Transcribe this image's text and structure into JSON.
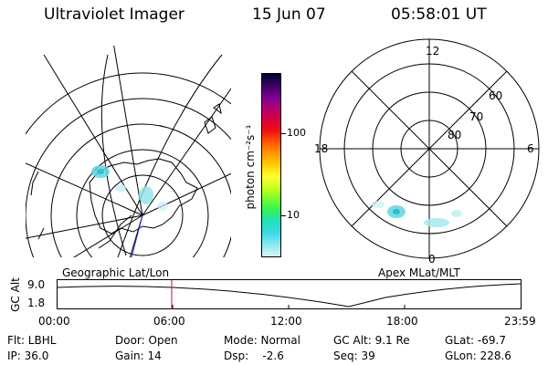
{
  "header": {
    "instrument": "Ultraviolet Imager",
    "date": "15 Jun 07",
    "time": "05:58:01 UT"
  },
  "left_panel": {
    "label": "Geographic Lat/Lon"
  },
  "right_panel": {
    "label": "Apex MLat/MLT",
    "mlt_labels": {
      "top": "12",
      "left": "18",
      "right": "6",
      "bottom": "0"
    },
    "lat_labels": [
      "60",
      "70",
      "80"
    ]
  },
  "colorbar": {
    "unit_label": "photon cm⁻²s⁻¹",
    "ticks": [
      "100",
      "10"
    ],
    "colors": [
      "#000033",
      "#3a0060",
      "#7a0090",
      "#b00070",
      "#d8003a",
      "#f01010",
      "#ff5a00",
      "#ff9a00",
      "#ffd000",
      "#ffff30",
      "#c8ff20",
      "#70ff30",
      "#30f060",
      "#20e0c0",
      "#40d8e8",
      "#90e8f0",
      "#d8f4f8"
    ]
  },
  "timeline": {
    "axis_label": "GC Alt",
    "y_ticks": [
      "9.0",
      "1.8"
    ],
    "x_ticks": [
      "00:00",
      "06:00",
      "12:00",
      "18:00",
      "23:59"
    ],
    "current_time_marker": "06:00"
  },
  "info": {
    "filter": "Flt: LBHL",
    "ip": "IP: 36.0",
    "door": "Door: Open",
    "gain": "Gain: 14",
    "mode": "Mode: Normal",
    "dsp": "Dsp:    -2.6",
    "gc_alt": "GC Alt: 9.1 Re",
    "seq": "Seq: 39",
    "glat": "GLat: -69.7",
    "glon": "GLon: 228.6"
  }
}
